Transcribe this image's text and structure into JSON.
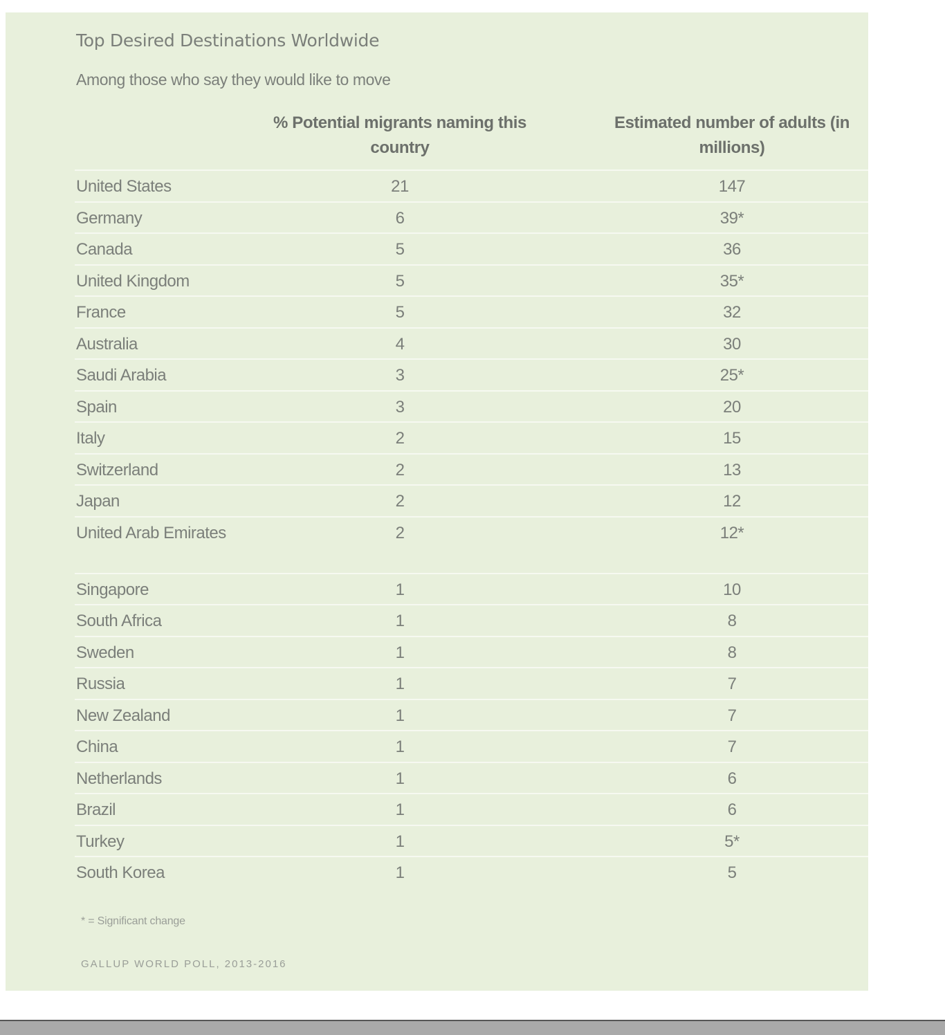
{
  "title": "Top Desired Destinations Worldwide",
  "subtitle": "Among those who say they would like to move",
  "table": {
    "headers": [
      "",
      "% Potential migrants naming this country",
      "Estimated number of adults (in millions)"
    ],
    "rows": [
      {
        "country": "United States",
        "pct": "21",
        "adults": "147"
      },
      {
        "country": "Germany",
        "pct": "6",
        "adults": "39*"
      },
      {
        "country": "Canada",
        "pct": "5",
        "adults": "36"
      },
      {
        "country": "United Kingdom",
        "pct": "5",
        "adults": "35*"
      },
      {
        "country": "France",
        "pct": "5",
        "adults": "32"
      },
      {
        "country": "Australia",
        "pct": "4",
        "adults": "30"
      },
      {
        "country": "Saudi Arabia",
        "pct": "3",
        "adults": "25*"
      },
      {
        "country": "Spain",
        "pct": "3",
        "adults": "20"
      },
      {
        "country": "Italy",
        "pct": "2",
        "adults": "15"
      },
      {
        "country": "Switzerland",
        "pct": "2",
        "adults": "13"
      },
      {
        "country": "Japan",
        "pct": "2",
        "adults": "12"
      },
      {
        "country": "United Arab Emirates",
        "pct": "2",
        "adults": "12*"
      },
      {
        "country": "Singapore",
        "pct": "1",
        "adults": "10"
      },
      {
        "country": "South Africa",
        "pct": "1",
        "adults": "8"
      },
      {
        "country": "Sweden",
        "pct": "1",
        "adults": "8"
      },
      {
        "country": "Russia",
        "pct": "1",
        "adults": "7"
      },
      {
        "country": "New Zealand",
        "pct": "1",
        "adults": "7"
      },
      {
        "country": "China",
        "pct": "1",
        "adults": "7"
      },
      {
        "country": "Netherlands",
        "pct": "1",
        "adults": "6"
      },
      {
        "country": "Brazil",
        "pct": "1",
        "adults": "6"
      },
      {
        "country": "Turkey",
        "pct": "1",
        "adults": "5*"
      },
      {
        "country": "South Korea",
        "pct": "1",
        "adults": "5"
      }
    ]
  },
  "footnote": "* = Significant change",
  "source": "GALLUP WORLD POLL, 2013-2016"
}
